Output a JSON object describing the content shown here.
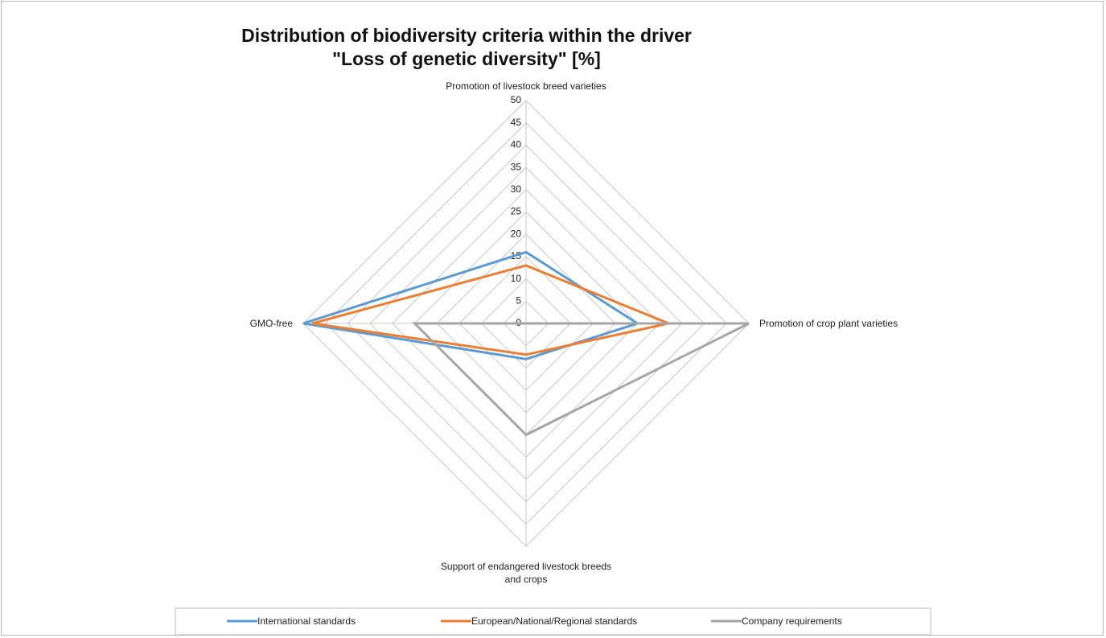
{
  "chart_data": {
    "type": "radar",
    "title": "Distribution of biodiversity criteria within the driver \"Loss of genetic diversity\" [%]",
    "categories": [
      "Promotion of livestock breed varieties",
      "Promotion of crop plant varieties",
      "Support of endangered livestock breeds and crops",
      "GMO-free"
    ],
    "series": [
      {
        "name": "International standards",
        "color": "#5b9bd5",
        "values": [
          16,
          25,
          8,
          50
        ]
      },
      {
        "name": "European/National/Regional standards",
        "color": "#ed7d31",
        "values": [
          13,
          32,
          7,
          48
        ]
      },
      {
        "name": "Company requirements",
        "color": "#a5a5a5",
        "values": [
          0,
          50,
          25,
          25
        ]
      }
    ],
    "ylim": [
      0,
      50
    ],
    "yticks": [
      0,
      5,
      10,
      15,
      20,
      25,
      30,
      35,
      40,
      45,
      50
    ],
    "grid": true,
    "legend": "bottom"
  }
}
